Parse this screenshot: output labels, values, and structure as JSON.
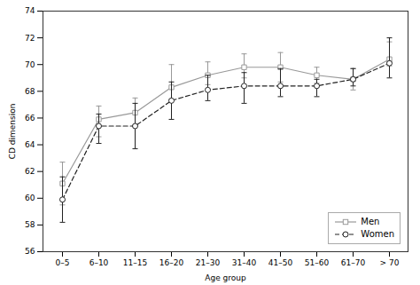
{
  "chart_data": {
    "type": "line",
    "xlabel": "Age group",
    "ylabel": "CD dimension",
    "categories": [
      "0–5",
      "6–10",
      "11–15",
      "16–20",
      "21–30",
      "31–40",
      "41–50",
      "51–60",
      "61–70",
      "> 70"
    ],
    "series": [
      {
        "name": "Men",
        "color": "#999999",
        "line_style": "solid",
        "marker": "square",
        "values": [
          61.1,
          65.9,
          66.4,
          68.3,
          69.2,
          69.8,
          69.8,
          69.2,
          68.9,
          70.4
        ],
        "error_lo": [
          1.6,
          1.3,
          0.9,
          0.9,
          0.7,
          0.8,
          1.1,
          0.6,
          0.8,
          0.5
        ],
        "error_hi": [
          1.6,
          1.0,
          1.1,
          1.7,
          1.0,
          1.0,
          1.1,
          0.6,
          0.8,
          1.3
        ]
      },
      {
        "name": "Women",
        "color": "#222222",
        "line_style": "dashed",
        "marker": "circle",
        "values": [
          59.9,
          65.4,
          65.4,
          67.3,
          68.1,
          68.4,
          68.4,
          68.4,
          68.9,
          70.1
        ],
        "error_lo": [
          1.7,
          1.3,
          1.7,
          1.4,
          0.8,
          1.3,
          0.8,
          0.8,
          0.5,
          1.1
        ],
        "error_hi": [
          1.7,
          0.9,
          1.7,
          1.4,
          1.1,
          1.0,
          1.3,
          0.5,
          0.8,
          1.9
        ]
      }
    ],
    "ylim": [
      56,
      74
    ],
    "yticks": [
      56,
      58,
      60,
      62,
      64,
      66,
      68,
      70,
      72,
      74
    ],
    "grid": false,
    "legend": "lower right"
  }
}
